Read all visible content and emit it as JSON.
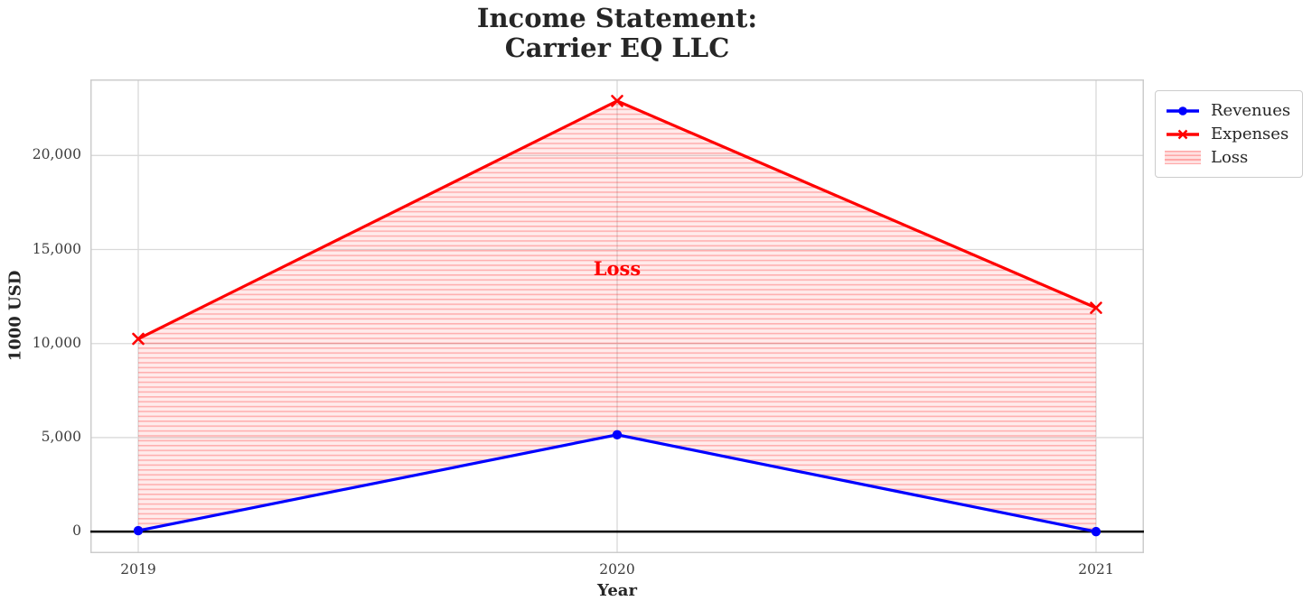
{
  "title": {
    "line1": "Income Statement:",
    "line2": "Carrier EQ LLC"
  },
  "chart_data": {
    "type": "line",
    "title": "Income Statement: Carrier EQ LLC",
    "xlabel": "Year",
    "ylabel": "1000 USD",
    "x": [
      2019,
      2020,
      2021
    ],
    "x_tick_labels": [
      "2019",
      "2020",
      "2021"
    ],
    "xlim": [
      2018.9,
      2021.1
    ],
    "ylim": [
      -1145,
      24045
    ],
    "y_ticks": [
      {
        "value": 0,
        "label": "0"
      },
      {
        "value": 5000,
        "label": "5,000"
      },
      {
        "value": 10000,
        "label": "10,000"
      },
      {
        "value": 15000,
        "label": "15,000"
      },
      {
        "value": 20000,
        "label": "20,000"
      }
    ],
    "grid": true,
    "series": [
      {
        "name": "Revenues",
        "color": "#0000ff",
        "marker": "circle",
        "values": [
          50,
          5150,
          0
        ]
      },
      {
        "name": "Expenses",
        "color": "#ff0000",
        "marker": "x",
        "values": [
          10250,
          22900,
          11900
        ]
      }
    ],
    "loss_area": {
      "name": "Loss",
      "between": [
        "Expenses",
        "Revenues"
      ],
      "color": "#ff0000",
      "hatch": "horizontal-lines"
    },
    "zero_line": {
      "value": 0,
      "color": "#000000"
    },
    "annotations": [
      {
        "text": "Loss",
        "x": 2020,
        "y": 14000,
        "color": "#ff0000",
        "bold": true
      }
    ],
    "legend": {
      "location": "outside-upper-right",
      "entries": [
        "Revenues",
        "Expenses",
        "Loss"
      ]
    },
    "colors": {
      "grid": "#d9d9d9",
      "frame": "#cccccc",
      "tick_text": "#3c3c3c",
      "title_text": "#262626"
    }
  }
}
